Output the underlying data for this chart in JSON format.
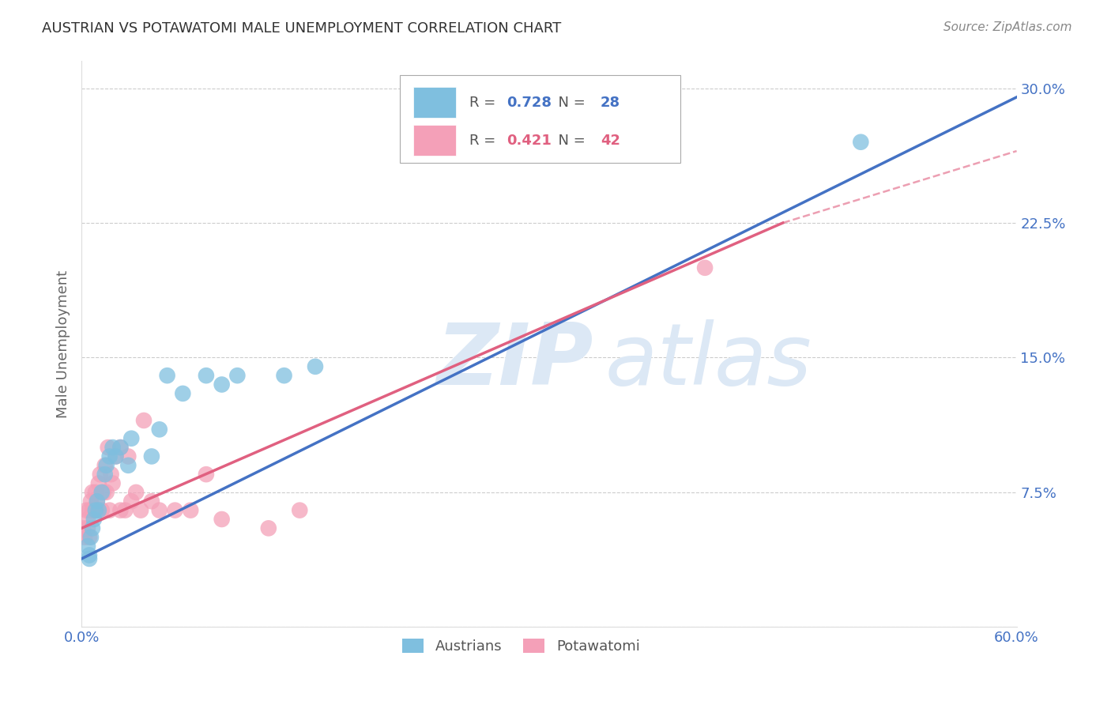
{
  "title": "AUSTRIAN VS POTAWATOMI MALE UNEMPLOYMENT CORRELATION CHART",
  "source": "Source: ZipAtlas.com",
  "ylabel": "Male Unemployment",
  "yticks": [
    0.0,
    0.075,
    0.15,
    0.225,
    0.3
  ],
  "ytick_labels": [
    "",
    "7.5%",
    "15.0%",
    "22.5%",
    "30.0%"
  ],
  "xlim": [
    0.0,
    0.6
  ],
  "ylim": [
    0.0,
    0.315
  ],
  "austrians_R": 0.728,
  "austrians_N": 28,
  "potawatomi_R": 0.421,
  "potawatomi_N": 42,
  "blue_color": "#7fbfdf",
  "pink_color": "#f4a0b8",
  "line_blue": "#4472C4",
  "line_pink": "#E06080",
  "axis_color": "#4472C4",
  "watermark_color": "#dce8f5",
  "blue_scatter_x": [
    0.004,
    0.005,
    0.006,
    0.007,
    0.008,
    0.009,
    0.01,
    0.011,
    0.013,
    0.015,
    0.016,
    0.018,
    0.02,
    0.022,
    0.025,
    0.03,
    0.032,
    0.045,
    0.05,
    0.055,
    0.065,
    0.08,
    0.09,
    0.1,
    0.13,
    0.15,
    0.5,
    0.005
  ],
  "blue_scatter_y": [
    0.045,
    0.04,
    0.05,
    0.055,
    0.06,
    0.065,
    0.07,
    0.065,
    0.075,
    0.085,
    0.09,
    0.095,
    0.1,
    0.095,
    0.1,
    0.09,
    0.105,
    0.095,
    0.11,
    0.14,
    0.13,
    0.14,
    0.135,
    0.14,
    0.14,
    0.145,
    0.27,
    0.038
  ],
  "pink_scatter_x": [
    0.001,
    0.002,
    0.003,
    0.004,
    0.004,
    0.005,
    0.005,
    0.006,
    0.007,
    0.007,
    0.008,
    0.009,
    0.01,
    0.01,
    0.011,
    0.012,
    0.013,
    0.014,
    0.015,
    0.016,
    0.017,
    0.018,
    0.019,
    0.02,
    0.022,
    0.025,
    0.025,
    0.028,
    0.03,
    0.032,
    0.035,
    0.038,
    0.04,
    0.045,
    0.05,
    0.06,
    0.07,
    0.08,
    0.09,
    0.12,
    0.14,
    0.4
  ],
  "pink_scatter_y": [
    0.055,
    0.05,
    0.065,
    0.06,
    0.055,
    0.05,
    0.065,
    0.07,
    0.065,
    0.075,
    0.065,
    0.075,
    0.07,
    0.065,
    0.08,
    0.085,
    0.065,
    0.075,
    0.09,
    0.075,
    0.1,
    0.065,
    0.085,
    0.08,
    0.095,
    0.065,
    0.1,
    0.065,
    0.095,
    0.07,
    0.075,
    0.065,
    0.115,
    0.07,
    0.065,
    0.065,
    0.065,
    0.085,
    0.06,
    0.055,
    0.065,
    0.2
  ],
  "blue_line_start_x": 0.0,
  "blue_line_end_x": 0.6,
  "pink_line_solid_end_x": 0.45,
  "pink_line_dashed_end_x": 0.6
}
